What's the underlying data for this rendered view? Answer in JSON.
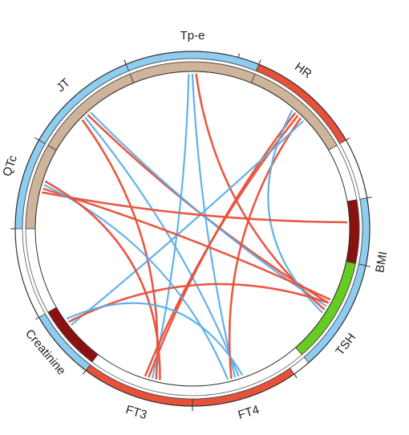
{
  "colors": {
    "positive": "#e8503a",
    "negative": "#5aaee8",
    "positive_track": "#e8503a",
    "negative_track": "#8ecdf2",
    "group_tan": "#cdb49a",
    "group_darkred": "#8b1010",
    "group_green": "#66cc22"
  },
  "nodes": [
    {
      "id": "tpe",
      "label": "Tp-e",
      "outer": "negative_track",
      "inner": "group_tan"
    },
    {
      "id": "hr",
      "label": "HR",
      "outer": "positive_track",
      "inner": "group_tan"
    },
    {
      "id": "bmi",
      "label": "BMI",
      "outer": "negative_track",
      "inner": "group_darkred"
    },
    {
      "id": "tsh",
      "label": "TSH",
      "outer": "negative_track",
      "inner": "group_green"
    },
    {
      "id": "ft4",
      "label": "FT4",
      "outer": "positive_track",
      "inner": "none"
    },
    {
      "id": "ft3",
      "label": "FT3",
      "outer": "positive_track",
      "inner": "none"
    },
    {
      "id": "creatinine",
      "label": "Creatinine",
      "outer": "negative_track",
      "inner": "group_darkred"
    },
    {
      "id": "qtc",
      "label": "QTc",
      "outer": "negative_track",
      "inner": "group_tan"
    },
    {
      "id": "jt",
      "label": "JT",
      "outer": "negative_track",
      "inner": "group_tan"
    }
  ],
  "links": [
    {
      "source": "jt",
      "target": "ft3",
      "sign": "positive"
    },
    {
      "source": "jt",
      "target": "ft4",
      "sign": "negative"
    },
    {
      "source": "jt",
      "target": "tsh",
      "sign": "positive"
    },
    {
      "source": "jt",
      "target": "tsh",
      "sign": "negative"
    },
    {
      "source": "tpe",
      "target": "ft3",
      "sign": "negative"
    },
    {
      "source": "tpe",
      "target": "ft4",
      "sign": "negative"
    },
    {
      "source": "tpe",
      "target": "tsh",
      "sign": "positive"
    },
    {
      "source": "hr",
      "target": "ft3",
      "sign": "positive"
    },
    {
      "source": "hr",
      "target": "ft3",
      "sign": "positive"
    },
    {
      "source": "hr",
      "target": "ft4",
      "sign": "positive"
    },
    {
      "source": "hr",
      "target": "creatinine",
      "sign": "negative"
    },
    {
      "source": "hr",
      "target": "tsh",
      "sign": "negative"
    },
    {
      "source": "qtc",
      "target": "bmi",
      "sign": "positive"
    },
    {
      "source": "qtc",
      "target": "tsh",
      "sign": "positive"
    },
    {
      "source": "qtc",
      "target": "ft4",
      "sign": "negative"
    },
    {
      "source": "qtc",
      "target": "ft3",
      "sign": "positive"
    },
    {
      "source": "creatinine",
      "target": "tsh",
      "sign": "positive"
    },
    {
      "source": "creatinine",
      "target": "ft4",
      "sign": "negative"
    }
  ]
}
